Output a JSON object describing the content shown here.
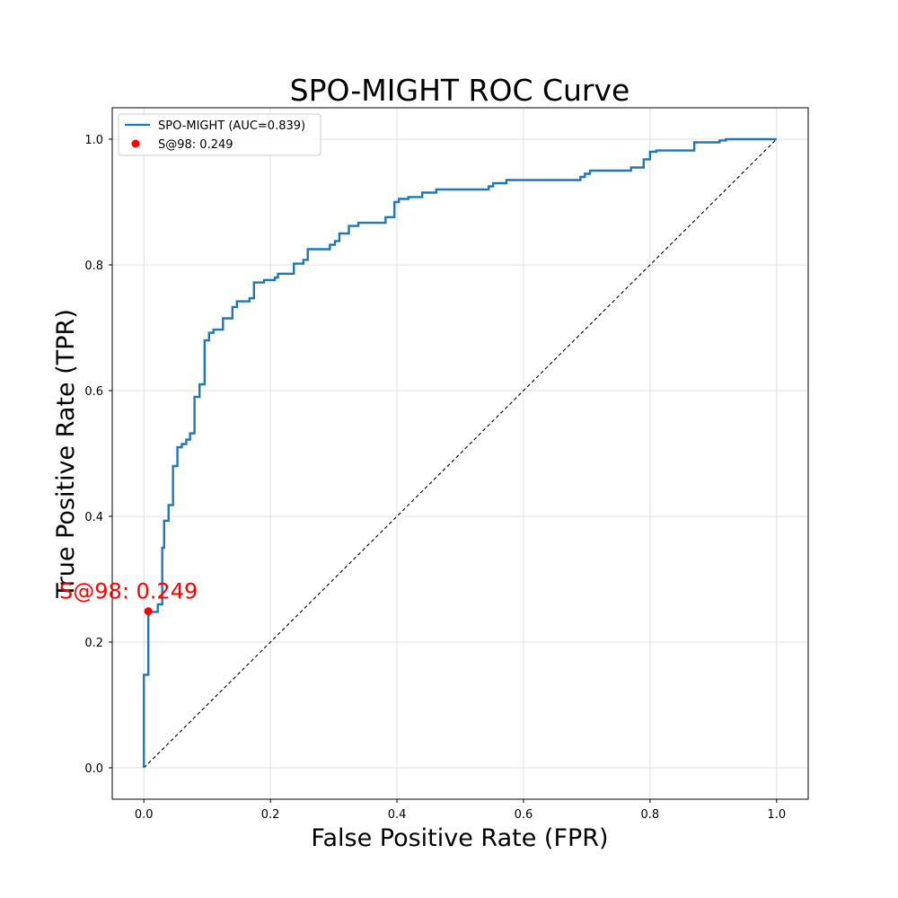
{
  "chart_data": {
    "type": "line",
    "title": "SPO-MIGHT ROC Curve",
    "xlabel": "False Positive Rate (FPR)",
    "ylabel": "True Positive Rate (TPR)",
    "xlim": [
      -0.05,
      1.05
    ],
    "ylim": [
      -0.05,
      1.05
    ],
    "xticks": [
      0.0,
      0.2,
      0.4,
      0.6,
      0.8,
      1.0
    ],
    "yticks": [
      0.0,
      0.2,
      0.4,
      0.6,
      0.8,
      1.0
    ],
    "xtick_labels": [
      "0.0",
      "0.2",
      "0.4",
      "0.6",
      "0.8",
      "1.0"
    ],
    "ytick_labels": [
      "0.0",
      "0.2",
      "0.4",
      "0.6",
      "0.8",
      "1.0"
    ],
    "grid": true,
    "legend_position": "top-left",
    "colors": {
      "roc": "#1f77b4",
      "point": "#ff0000",
      "diagonal": "#000000",
      "grid": "#d9d9d9"
    },
    "series": [
      {
        "name": "SPO-MIGHT (AUC=0.839)",
        "style": "step",
        "x": [
          0,
          0,
          0.007,
          0.007,
          0.022,
          0.022,
          0.029,
          0.029,
          0.032,
          0.032,
          0.039,
          0.039,
          0.046,
          0.046,
          0.053,
          0.053,
          0.06,
          0.06,
          0.067,
          0.067,
          0.073,
          0.073,
          0.08,
          0.08,
          0.088,
          0.088,
          0.096,
          0.096,
          0.103,
          0.103,
          0.11,
          0.11,
          0.125,
          0.125,
          0.14,
          0.14,
          0.147,
          0.147,
          0.167,
          0.167,
          0.174,
          0.174,
          0.19,
          0.19,
          0.207,
          0.207,
          0.212,
          0.212,
          0.237,
          0.237,
          0.252,
          0.252,
          0.259,
          0.259,
          0.294,
          0.294,
          0.302,
          0.302,
          0.309,
          0.309,
          0.324,
          0.324,
          0.339,
          0.339,
          0.382,
          0.382,
          0.396,
          0.396,
          0.403,
          0.403,
          0.418,
          0.418,
          0.44,
          0.44,
          0.462,
          0.462,
          0.545,
          0.545,
          0.552,
          0.552,
          0.573,
          0.573,
          0.69,
          0.69,
          0.697,
          0.697,
          0.705,
          0.705,
          0.77,
          0.77,
          0.79,
          0.79,
          0.8,
          0.8,
          0.81,
          0.81,
          0.87,
          0.87,
          0.91,
          0.91,
          0.92,
          0.92,
          0.925,
          0.925,
          0.97,
          0.97,
          0.99,
          0.99,
          1.0
        ],
        "y": [
          0,
          0.148,
          0.148,
          0.248,
          0.248,
          0.26,
          0.26,
          0.35,
          0.35,
          0.393,
          0.393,
          0.418,
          0.418,
          0.48,
          0.48,
          0.51,
          0.51,
          0.515,
          0.515,
          0.522,
          0.522,
          0.532,
          0.532,
          0.59,
          0.59,
          0.61,
          0.61,
          0.68,
          0.68,
          0.692,
          0.692,
          0.697,
          0.697,
          0.715,
          0.715,
          0.733,
          0.733,
          0.742,
          0.742,
          0.747,
          0.747,
          0.772,
          0.772,
          0.776,
          0.776,
          0.78,
          0.78,
          0.786,
          0.786,
          0.802,
          0.802,
          0.808,
          0.808,
          0.825,
          0.825,
          0.832,
          0.832,
          0.838,
          0.838,
          0.85,
          0.85,
          0.862,
          0.862,
          0.867,
          0.867,
          0.876,
          0.876,
          0.9,
          0.9,
          0.905,
          0.905,
          0.908,
          0.908,
          0.915,
          0.915,
          0.92,
          0.92,
          0.925,
          0.925,
          0.93,
          0.93,
          0.935,
          0.935,
          0.94,
          0.94,
          0.945,
          0.945,
          0.95,
          0.95,
          0.955,
          0.955,
          0.968,
          0.968,
          0.98,
          0.98,
          0.982,
          0.982,
          0.995,
          0.995,
          0.998,
          0.998,
          1.0,
          1.0,
          1.0,
          1.0,
          1.0,
          1.0,
          1.0,
          1.0
        ]
      },
      {
        "name": "S@98: 0.249",
        "style": "point",
        "x": [
          0.007
        ],
        "y": [
          0.249
        ]
      }
    ],
    "diagonal": {
      "x": [
        0,
        1
      ],
      "y": [
        0,
        1
      ]
    },
    "annotation": {
      "text": "S@98: 0.249",
      "x": 0.007,
      "y": 0.249
    }
  }
}
